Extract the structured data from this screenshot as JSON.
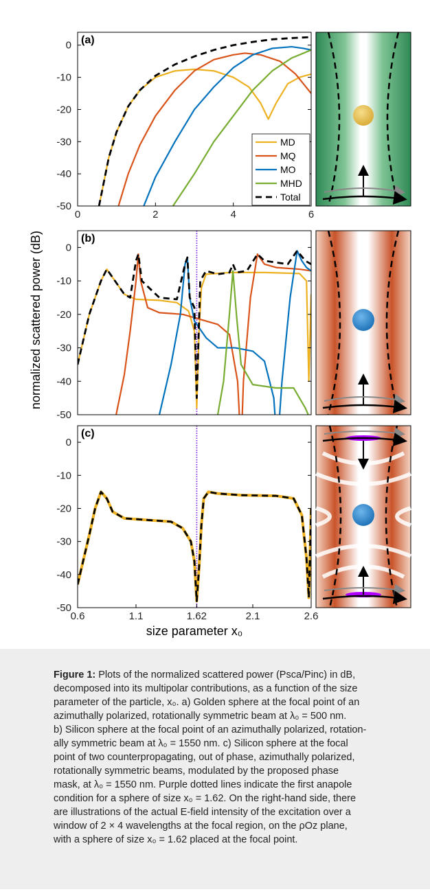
{
  "chart_data": [
    {
      "type": "line",
      "panel_label": "(a)",
      "xlim": [
        0,
        6
      ],
      "xticks": [
        0,
        2,
        4,
        6
      ],
      "ylim": [
        -50,
        4
      ],
      "yticks": [
        0,
        -10,
        -20,
        -30,
        -40,
        -50
      ],
      "legend": "lower right",
      "series": [
        {
          "name": "MD",
          "color": "#EDB120",
          "x": [
            0.55,
            0.6,
            0.8,
            1.0,
            1.3,
            1.6,
            2.0,
            2.5,
            3.0,
            3.5,
            4.0,
            4.4,
            4.7,
            4.9,
            5.1,
            5.4,
            5.7,
            6.0
          ],
          "values": [
            -50,
            -47,
            -35,
            -27,
            -19,
            -14,
            -10,
            -8,
            -7.5,
            -8,
            -10,
            -13,
            -18,
            -23,
            -18,
            -12,
            -10,
            -9
          ]
        },
        {
          "name": "MQ",
          "color": "#D95319",
          "x": [
            1.05,
            1.3,
            1.6,
            2.0,
            2.5,
            3.0,
            3.5,
            4.0,
            4.3,
            4.7,
            5.2,
            5.6,
            6.0
          ],
          "values": [
            -50,
            -40,
            -31,
            -22,
            -14,
            -8,
            -4.5,
            -3,
            -2.5,
            -3,
            -5,
            -9,
            -15
          ]
        },
        {
          "name": "MO",
          "color": "#0072BD",
          "x": [
            1.7,
            2.0,
            2.5,
            3.0,
            3.5,
            4.0,
            4.5,
            5.0,
            5.5,
            5.8,
            6.0
          ],
          "values": [
            -50,
            -41,
            -30,
            -20,
            -13,
            -7,
            -3,
            -1,
            -0.5,
            -1,
            -1.5
          ]
        },
        {
          "name": "MHD",
          "color": "#77AC30",
          "x": [
            2.45,
            3.0,
            3.5,
            4.0,
            4.5,
            5.0,
            5.5,
            6.0
          ],
          "values": [
            -50,
            -40,
            -30,
            -22,
            -14,
            -8,
            -4,
            -1.5
          ]
        },
        {
          "name": "Total",
          "color": "#000000",
          "dashed": true,
          "x": [
            0.55,
            0.8,
            1.0,
            1.3,
            1.6,
            2.0,
            2.5,
            3.0,
            3.5,
            4.0,
            4.5,
            5.0,
            5.5,
            6.0
          ],
          "values": [
            -50,
            -35,
            -27,
            -19,
            -14,
            -9.5,
            -6,
            -3.5,
            -1.5,
            0,
            1,
            1.8,
            2.2,
            2.5
          ]
        }
      ]
    },
    {
      "type": "line",
      "panel_label": "(b)",
      "ylabel": "normalized scattered power (dB)",
      "xlim": [
        0.6,
        2.6
      ],
      "ylim": [
        -50,
        5
      ],
      "yticks": [
        0,
        -10,
        -20,
        -30,
        -40,
        -50
      ],
      "vline": 1.62,
      "vline_color": "#8A2BE2",
      "series": [
        {
          "color": "#EDB120",
          "x": [
            0.6,
            0.7,
            0.8,
            0.85,
            0.9,
            1.0,
            1.1,
            1.3,
            1.45,
            1.55,
            1.6,
            1.62,
            1.64,
            1.66,
            1.7,
            1.9,
            2.2,
            2.5,
            2.56,
            2.58,
            2.6
          ],
          "values": [
            -35,
            -20,
            -10,
            -6.5,
            -9,
            -14,
            -15.5,
            -15.8,
            -16.5,
            -19,
            -25,
            -48,
            -25,
            -12,
            -8,
            -7.5,
            -7.5,
            -7.8,
            -10,
            -40,
            -14
          ]
        },
        {
          "color": "#D95319",
          "x": [
            0.93,
            1.0,
            1.05,
            1.1,
            1.12,
            1.14,
            1.2,
            1.3,
            1.5,
            1.6,
            1.7,
            1.8,
            1.9,
            1.97,
            2.0,
            2.02,
            2.08,
            2.14,
            2.2,
            2.3,
            2.5,
            2.6
          ],
          "values": [
            -50,
            -38,
            -25,
            -10,
            -2,
            -10,
            -18,
            -19.5,
            -20,
            -21,
            -22,
            -23,
            -26,
            -40,
            -60,
            -40,
            -15,
            -2,
            -5,
            -6,
            -6.5,
            -7
          ]
        },
        {
          "color": "#0072BD",
          "x": [
            1.3,
            1.4,
            1.48,
            1.52,
            1.54,
            1.56,
            1.6,
            1.7,
            1.8,
            1.95,
            2.1,
            2.2,
            2.28,
            2.31,
            2.35,
            2.42,
            2.48,
            2.52,
            2.56,
            2.6
          ],
          "values": [
            -50,
            -35,
            -20,
            -5,
            -3,
            -15,
            -22,
            -27,
            -30,
            -30,
            -31,
            -34,
            -45,
            -60,
            -40,
            -15,
            -1,
            -4,
            -6,
            -7
          ]
        },
        {
          "color": "#77AC30",
          "x": [
            1.8,
            1.85,
            1.9,
            1.93,
            1.96,
            2.0,
            2.1,
            2.3,
            2.45,
            2.55,
            2.6
          ],
          "values": [
            -50,
            -40,
            -20,
            -7,
            -20,
            -35,
            -41,
            -42,
            -42,
            -48,
            -52
          ]
        },
        {
          "color": "#000000",
          "dashed": true,
          "x": [
            0.6,
            0.7,
            0.8,
            0.85,
            0.9,
            1.0,
            1.05,
            1.1,
            1.12,
            1.15,
            1.3,
            1.45,
            1.52,
            1.54,
            1.56,
            1.6,
            1.62,
            1.65,
            1.7,
            1.8,
            1.9,
            1.93,
            1.96,
            2.05,
            2.14,
            2.2,
            2.4,
            2.48,
            2.55,
            2.6
          ],
          "values": [
            -35,
            -20,
            -10,
            -6.5,
            -9,
            -14,
            -15,
            -4,
            -2,
            -10,
            -15,
            -15.5,
            -5,
            -3,
            -15,
            -18,
            -45,
            -10,
            -7,
            -8,
            -7.5,
            -5,
            -7.5,
            -7,
            -2,
            -4,
            -5,
            -1,
            -4,
            -5
          ]
        }
      ]
    },
    {
      "type": "line",
      "panel_label": "(c)",
      "xlabel": "size parameter x₀",
      "xlim": [
        0.6,
        2.6
      ],
      "xticks": [
        0.6,
        1.1,
        1.62,
        2.1,
        2.6
      ],
      "ylim": [
        -50,
        5
      ],
      "yticks": [
        0,
        -10,
        -20,
        -30,
        -40,
        -50
      ],
      "vline": 1.62,
      "vline_color": "#8A2BE2",
      "series": [
        {
          "color": "#EDB120",
          "x": [
            0.6,
            0.7,
            0.75,
            0.8,
            0.85,
            0.9,
            1.0,
            1.2,
            1.4,
            1.5,
            1.57,
            1.6,
            1.62,
            1.64,
            1.66,
            1.68,
            1.72,
            1.8,
            2.0,
            2.3,
            2.45,
            2.52,
            2.56,
            2.58,
            2.6
          ],
          "values": [
            -43,
            -28,
            -20,
            -15,
            -17,
            -21,
            -23,
            -23.5,
            -24,
            -26,
            -30,
            -36,
            -48,
            -38,
            -25,
            -17,
            -15,
            -15.5,
            -16,
            -16.2,
            -17,
            -22,
            -35,
            -47,
            -20
          ]
        },
        {
          "color": "#000000",
          "dashed": true,
          "x": [
            0.6,
            0.7,
            0.75,
            0.8,
            0.85,
            0.9,
            1.0,
            1.2,
            1.4,
            1.5,
            1.57,
            1.6,
            1.62,
            1.64,
            1.66,
            1.68,
            1.72,
            1.8,
            2.0,
            2.3,
            2.45,
            2.52,
            2.56,
            2.58,
            2.6
          ],
          "values": [
            -43,
            -28,
            -20,
            -15,
            -17,
            -21,
            -23,
            -23.5,
            -24,
            -26,
            -30,
            -36,
            -48,
            -38,
            -25,
            -17,
            -15,
            -15.5,
            -16,
            -16.2,
            -17,
            -22,
            -35,
            -47,
            -20
          ]
        }
      ]
    }
  ],
  "caption": {
    "label": "Figure 1:",
    "lines": [
      "Plots of the normalized scattered power (Psca/Pinc) in dB,",
      "decomposed into its multipolar contributions, as a function of the size",
      "parameter of the particle, x₀. a) Golden sphere at the focal point of an",
      "azimuthally polarized, rotationally symmetric beam at λ₀ = 500 nm.",
      "b) Silicon sphere at the focal point of an azimuthally polarized, rotation-",
      "ally symmetric beam at λ₀ = 1550 nm. c) Silicon sphere at the focal",
      "point of two counterpropagating, out of phase, azimuthally polarized,",
      "rotationally symmetric beams, modulated by the proposed phase",
      "mask, at λ₀ = 1550 nm. Purple dotted lines indicate the first anapole",
      "condition for a sphere of size x₀ = 1.62. On the right-hand side, there",
      "are illustrations of the actual E-field intensity of the excitation over a",
      "window of 2 × 4 wavelengths at the focal region, on the ρOz plane,",
      "with a sphere of size x₀ = 1.62 placed at the focal point."
    ]
  }
}
